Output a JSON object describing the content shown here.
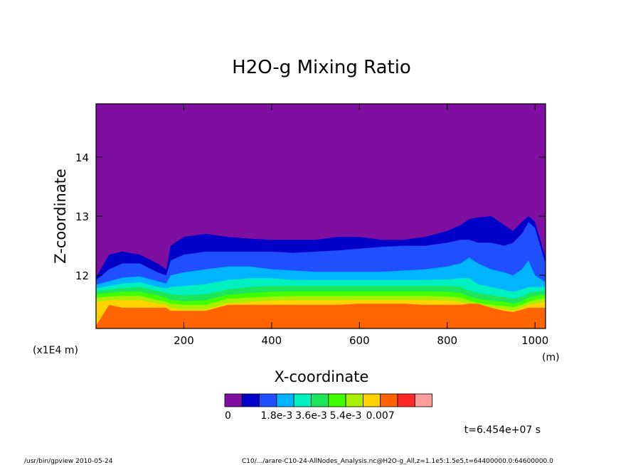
{
  "chart_data": {
    "type": "heatmap",
    "title": "H2O-g Mixing Ratio",
    "xlabel": "X-coordinate",
    "ylabel": "Z-coordinate",
    "x_unit": "(m)",
    "y_unit": "(x1E4 m)",
    "xlim": [
      0,
      1024
    ],
    "ylim": [
      11.1,
      14.9
    ],
    "x_ticks": [
      200,
      400,
      600,
      800,
      1000
    ],
    "y_ticks": [
      12,
      13,
      14
    ],
    "x_tick_labels": [
      "200",
      "400",
      "600",
      "800",
      "1000"
    ],
    "y_tick_labels": [
      "12",
      "13",
      "14"
    ],
    "colorbar": {
      "colors": [
        "#7f0fa0",
        "#0000c8",
        "#1f4fff",
        "#00b4ff",
        "#00f0c0",
        "#1ee65a",
        "#40ff00",
        "#a8f000",
        "#ffd200",
        "#ff6400",
        "#ff2828",
        "#ff9c9c"
      ],
      "labels": [
        "0",
        "1.8e-3",
        "3.6e-3",
        "5.4e-3",
        "0.007"
      ],
      "label_levels": [
        0,
        2,
        4,
        6,
        8
      ]
    },
    "contour_x": [
      0,
      30,
      60,
      100,
      140,
      160,
      170,
      200,
      250,
      300,
      350,
      400,
      450,
      500,
      550,
      600,
      650,
      700,
      750,
      800,
      830,
      850,
      870,
      900,
      930,
      950,
      970,
      985,
      1000,
      1024
    ],
    "contour_bounds": [
      [
        11.15,
        11.5,
        11.45,
        11.45,
        11.45,
        11.45,
        11.4,
        11.4,
        11.4,
        11.5,
        11.5,
        11.5,
        11.5,
        11.5,
        11.5,
        11.52,
        11.52,
        11.52,
        11.5,
        11.5,
        11.5,
        11.52,
        11.52,
        11.45,
        11.4,
        11.38,
        11.42,
        11.45,
        11.45,
        11.45
      ],
      [
        11.55,
        11.58,
        11.58,
        11.58,
        11.52,
        11.5,
        11.45,
        11.42,
        11.42,
        11.52,
        11.55,
        11.57,
        11.58,
        11.58,
        11.58,
        11.58,
        11.58,
        11.58,
        11.58,
        11.57,
        11.55,
        11.5,
        11.47,
        11.45,
        11.42,
        11.4,
        11.45,
        11.5,
        11.52,
        11.55
      ],
      [
        11.62,
        11.64,
        11.65,
        11.65,
        11.58,
        11.55,
        11.52,
        11.5,
        11.5,
        11.6,
        11.62,
        11.64,
        11.65,
        11.65,
        11.65,
        11.65,
        11.65,
        11.65,
        11.65,
        11.64,
        11.62,
        11.57,
        11.53,
        11.5,
        11.48,
        11.46,
        11.5,
        11.55,
        11.58,
        11.62
      ],
      [
        11.68,
        11.7,
        11.72,
        11.72,
        11.66,
        11.62,
        11.58,
        11.56,
        11.58,
        11.67,
        11.7,
        11.72,
        11.73,
        11.73,
        11.73,
        11.73,
        11.73,
        11.73,
        11.73,
        11.72,
        11.7,
        11.64,
        11.6,
        11.57,
        11.55,
        11.52,
        11.56,
        11.62,
        11.65,
        11.68
      ],
      [
        11.73,
        11.76,
        11.78,
        11.8,
        11.74,
        11.7,
        11.68,
        11.66,
        11.68,
        11.76,
        11.8,
        11.82,
        11.82,
        11.82,
        11.82,
        11.82,
        11.82,
        11.82,
        11.82,
        11.82,
        11.8,
        11.74,
        11.7,
        11.66,
        11.63,
        11.6,
        11.64,
        11.7,
        11.72,
        11.74
      ],
      [
        11.78,
        11.82,
        11.86,
        11.88,
        11.8,
        11.78,
        11.8,
        11.82,
        11.85,
        11.92,
        11.95,
        11.95,
        11.92,
        11.92,
        11.92,
        11.92,
        11.92,
        11.92,
        11.92,
        11.93,
        11.95,
        11.95,
        11.85,
        11.8,
        11.75,
        11.72,
        11.76,
        11.8,
        11.8,
        11.8
      ],
      [
        11.84,
        11.9,
        11.96,
        11.98,
        11.9,
        11.86,
        12.0,
        12.05,
        12.1,
        12.15,
        12.15,
        12.1,
        12.08,
        12.06,
        12.06,
        12.06,
        12.06,
        12.08,
        12.1,
        12.15,
        12.2,
        12.3,
        12.2,
        12.1,
        12.05,
        12.0,
        12.1,
        12.25,
        12.0,
        11.88
      ],
      [
        11.92,
        12.1,
        12.2,
        12.2,
        12.05,
        12.0,
        12.25,
        12.35,
        12.4,
        12.4,
        12.4,
        12.4,
        12.38,
        12.4,
        12.42,
        12.45,
        12.48,
        12.5,
        12.5,
        12.55,
        12.6,
        12.6,
        12.55,
        12.55,
        12.5,
        12.55,
        12.7,
        12.9,
        12.8,
        12.2
      ],
      [
        11.97,
        12.35,
        12.4,
        12.35,
        12.2,
        12.1,
        12.5,
        12.65,
        12.7,
        12.65,
        12.62,
        12.6,
        12.6,
        12.6,
        12.65,
        12.65,
        12.6,
        12.6,
        12.65,
        12.75,
        12.85,
        12.95,
        12.98,
        13.0,
        12.85,
        12.75,
        12.9,
        13.0,
        12.9,
        12.3
      ]
    ]
  },
  "footer": {
    "time_label": "t=6.454e+07 s",
    "left_text": "/usr/bin/gpview  2010-05-24",
    "right_text": "C10/.../arare-C10-24-AllNodes_Analysis.nc@H2O-g_All,z=1.1e5:1.5e5,t=64400000.0:64600000.0"
  }
}
